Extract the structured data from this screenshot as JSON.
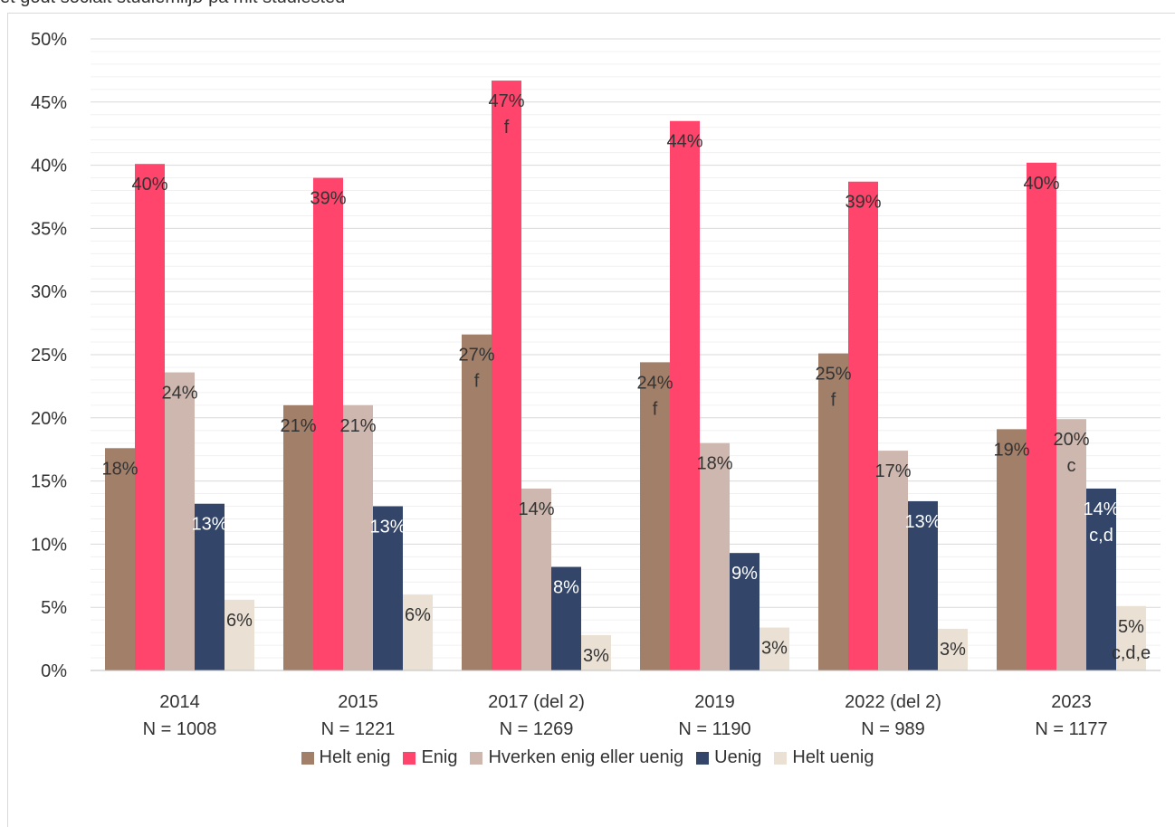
{
  "chart_data": {
    "type": "bar",
    "title": "et godt socialt studiemiljø på mit studiested",
    "categories": [
      {
        "year": "2014",
        "n": "N = 1008"
      },
      {
        "year": "2015",
        "n": "N = 1221"
      },
      {
        "year": "2017 (del 2)",
        "n": "N = 1269"
      },
      {
        "year": "2019",
        "n": "N = 1190"
      },
      {
        "year": "2022 (del 2)",
        "n": "N = 989"
      },
      {
        "year": "2023",
        "n": "N = 1177"
      }
    ],
    "ylim": [
      0,
      50
    ],
    "yticks": [
      "0%",
      "5%",
      "10%",
      "15%",
      "20%",
      "25%",
      "30%",
      "35%",
      "40%",
      "45%",
      "50%"
    ],
    "legend_position": "bottom",
    "series": [
      {
        "name": "Helt enig",
        "color": "#A27F69",
        "label_color": "#333333",
        "values": [
          17.6,
          21.0,
          26.6,
          24.4,
          25.1,
          19.1
        ],
        "labels": [
          "18%",
          "21%",
          "27%",
          "24%",
          "25%",
          "19%"
        ],
        "notes": [
          "",
          "",
          "f",
          "f",
          "f",
          ""
        ]
      },
      {
        "name": "Enig",
        "color": "#FF456B",
        "label_color": "#333333",
        "values": [
          40.1,
          39.0,
          46.7,
          43.5,
          38.7,
          40.2
        ],
        "labels": [
          "40%",
          "39%",
          "47%",
          "44%",
          "39%",
          "40%"
        ],
        "notes": [
          "",
          "",
          "f",
          "",
          "",
          ""
        ]
      },
      {
        "name": "Hverken enig eller uenig",
        "color": "#CEB7AE",
        "label_color": "#333333",
        "values": [
          23.6,
          21.0,
          14.4,
          18.0,
          17.4,
          19.9
        ],
        "labels": [
          "24%",
          "21%",
          "14%",
          "18%",
          "17%",
          "20%"
        ],
        "notes": [
          "",
          "",
          "",
          "",
          "",
          "c"
        ]
      },
      {
        "name": "Uenig",
        "color": "#33466A",
        "label_color": "#ffffff",
        "values": [
          13.2,
          13.0,
          8.2,
          9.3,
          13.4,
          14.4
        ],
        "labels": [
          "13%",
          "13%",
          "8%",
          "9%",
          "13%",
          "14%"
        ],
        "notes": [
          "",
          "",
          "",
          "",
          "",
          "c,d"
        ]
      },
      {
        "name": "Helt uenig",
        "color": "#EAE1D4",
        "label_color": "#333333",
        "values": [
          5.6,
          6.0,
          2.8,
          3.4,
          3.3,
          5.1
        ],
        "labels": [
          "6%",
          "6%",
          "3%",
          "3%",
          "3%",
          "5%"
        ],
        "notes": [
          "",
          "",
          "",
          "",
          "",
          "c,d,e"
        ]
      }
    ]
  }
}
